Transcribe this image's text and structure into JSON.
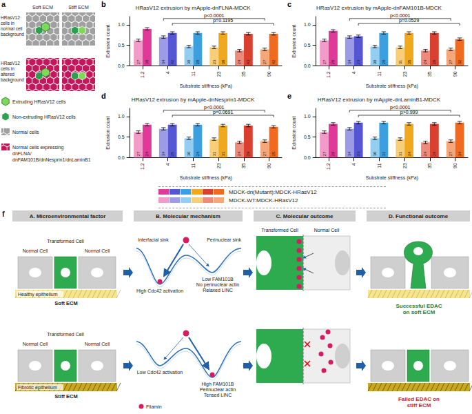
{
  "panel_a": {
    "label": "a",
    "columns": [
      "Soft ECM",
      "Stiff ECM"
    ],
    "rows": [
      "HRasV12 cells in normal cell background",
      "HRasV12 cells in altered background"
    ],
    "key": [
      "Extruding HRasV12 cells",
      "Non-extruding HRasV12 cells",
      "Normal cells",
      "Normal cells expressing dnFLNA/ dnFAM101B/dnNesprin1/dnLaminB1"
    ]
  },
  "chart_data": [
    {
      "panel_label": "b",
      "type": "bar",
      "title": "HRasV12 extrusion by mApple-dnFLNA-MDCK",
      "x_label": "Substrate stiffness (kPa)",
      "y_label": "Extrusion count",
      "categories": [
        "1.2",
        "4",
        "11",
        "23",
        "35",
        "90"
      ],
      "series": [
        {
          "name": "MDCK-WT:MDCK-HRasV12",
          "colors": [
            "#f29ac8",
            "#9b9be6",
            "#93cdf0",
            "#f8cf78",
            "#ee8a7c",
            "#f6a779"
          ],
          "values": [
            0.62,
            0.7,
            0.47,
            0.45,
            0.37,
            0.4
          ],
          "errors": [
            0.03,
            0.03,
            0.03,
            0.03,
            0.03,
            0.03
          ],
          "n": [
            27,
            34,
            30,
            23,
            24,
            27
          ]
        },
        {
          "name": "MDCK-dn(Mutant):MDCK-HRasV12",
          "colors": [
            "#e0399a",
            "#5556d4",
            "#3c9fe0",
            "#f0a81e",
            "#d9402f",
            "#f06a1f"
          ],
          "values": [
            0.9,
            0.8,
            0.8,
            0.8,
            0.78,
            0.78
          ],
          "errors": [
            0.03,
            0.03,
            0.03,
            0.03,
            0.03,
            0.03
          ],
          "n": [
            30,
            42,
            20,
            38,
            43,
            42
          ]
        }
      ],
      "ylim": [
        0,
        1.2
      ],
      "yticks": [
        {
          "value": 0,
          "label": "0.0"
        },
        0.5,
        {
          "value": 1,
          "label": "1.0"
        }
      ],
      "grid": false,
      "annotations": [
        {
          "text": "p<0.0001",
          "categories": [
            "4",
            "90"
          ],
          "series": "MDCK-WT:MDCK-HRasV12"
        },
        {
          "text": "p=0.1195",
          "categories": [
            "4",
            "90"
          ],
          "series": "MDCK-dn(Mutant):MDCK-HRasV12"
        }
      ]
    },
    {
      "panel_label": "c",
      "type": "bar",
      "title": "HRasV12 extrusion by mApple-dnFAM101B-MDCK",
      "x_label": "Substrate stiffness (kPa)",
      "y_label": "Extrusion count",
      "categories": [
        "1.2",
        "4",
        "11",
        "23",
        "35",
        "90"
      ],
      "series": [
        {
          "name": "MDCK-WT:MDCK-HRasV12",
          "colors": [
            "#f29ac8",
            "#9b9be6",
            "#93cdf0",
            "#f8cf78",
            "#ee8a7c",
            "#f6a779"
          ],
          "values": [
            0.62,
            0.7,
            0.47,
            0.45,
            0.37,
            0.4
          ],
          "errors": [
            0.03,
            0.03,
            0.03,
            0.03,
            0.03,
            0.03
          ],
          "n": [
            27,
            34,
            30,
            31,
            24,
            27
          ]
        },
        {
          "name": "MDCK-dn(Mutant):MDCK-HRasV12",
          "colors": [
            "#e0399a",
            "#5556d4",
            "#3c9fe0",
            "#f0a81e",
            "#d9402f",
            "#f06a1f"
          ],
          "values": [
            0.85,
            0.72,
            0.8,
            0.8,
            0.8,
            0.65
          ],
          "errors": [
            0.03,
            0.03,
            0.03,
            0.03,
            0.03,
            0.03
          ],
          "n": [
            28,
            23,
            20,
            35,
            28,
            32
          ]
        }
      ],
      "ylim": [
        0,
        1.2
      ],
      "yticks": [
        {
          "value": 0,
          "label": "0.0"
        },
        0.5,
        {
          "value": 1,
          "label": "1.0"
        }
      ],
      "grid": false,
      "annotations": [
        {
          "text": "p<0.0001",
          "categories": [
            "4",
            "90"
          ],
          "series": "MDCK-WT:MDCK-HRasV12"
        },
        {
          "text": "p=0.0529",
          "categories": [
            "4",
            "90"
          ],
          "series": "MDCK-dn(Mutant):MDCK-HRasV12"
        }
      ]
    },
    {
      "panel_label": "d",
      "type": "bar",
      "title": "HRasV12 extrusion by mApple-dnNesprin1-MDCK",
      "x_label": "Substrate stiffness (kPa)",
      "y_label": "Extrusion count",
      "categories": [
        "1.2",
        "4",
        "11",
        "23",
        "35",
        "90"
      ],
      "series": [
        {
          "name": "MDCK-WT:MDCK-HRasV12",
          "colors": [
            "#f29ac8",
            "#9b9be6",
            "#93cdf0",
            "#f8cf78",
            "#ee8a7c",
            "#f6a779"
          ],
          "values": [
            0.62,
            0.7,
            0.47,
            0.45,
            0.37,
            0.4
          ],
          "errors": [
            0.03,
            0.03,
            0.03,
            0.03,
            0.03,
            0.03
          ],
          "n": [
            27,
            34,
            30,
            31,
            24,
            27
          ]
        },
        {
          "name": "MDCK-dn(Mutant):MDCK-HRasV12",
          "colors": [
            "#e0399a",
            "#5556d4",
            "#3c9fe0",
            "#f0a81e",
            "#d9402f",
            "#f06a1f"
          ],
          "values": [
            0.8,
            0.8,
            0.8,
            0.78,
            0.78,
            0.75
          ],
          "errors": [
            0.03,
            0.03,
            0.03,
            0.03,
            0.03,
            0.03
          ],
          "n": [
            24,
            25,
            24,
            31,
            29,
            25
          ]
        }
      ],
      "ylim": [
        0,
        1.2
      ],
      "yticks": [
        {
          "value": 0,
          "label": "0.0"
        },
        0.5,
        {
          "value": 1,
          "label": "1.0"
        }
      ],
      "grid": false,
      "annotations": [
        {
          "text": "p<0.0001",
          "categories": [
            "4",
            "90"
          ],
          "series": "MDCK-WT:MDCK-HRasV12"
        },
        {
          "text": "p=0.0691",
          "categories": [
            "4",
            "90"
          ],
          "series": "MDCK-dn(Mutant):MDCK-HRasV12"
        }
      ]
    },
    {
      "panel_label": "e",
      "type": "bar",
      "title": "HRasV12 extrusion by mApple-dnLaminB1-MDCK",
      "x_label": "Substrate stiffness (kPa)",
      "y_label": "Extrusion count",
      "categories": [
        "1.2",
        "4",
        "11",
        "23",
        "35",
        "90"
      ],
      "series": [
        {
          "name": "MDCK-WT:MDCK-HRasV12",
          "colors": [
            "#f29ac8",
            "#9b9be6",
            "#93cdf0",
            "#f8cf78",
            "#ee8a7c",
            "#f6a779"
          ],
          "values": [
            0.62,
            0.7,
            0.47,
            0.45,
            0.37,
            0.4
          ],
          "errors": [
            0.03,
            0.03,
            0.03,
            0.03,
            0.03,
            0.03
          ],
          "n": [
            27,
            34,
            30,
            31,
            24,
            27
          ]
        },
        {
          "name": "MDCK-dn(Mutant):MDCK-HRasV12",
          "colors": [
            "#e0399a",
            "#5556d4",
            "#3c9fe0",
            "#f0a81e",
            "#d9402f",
            "#f06a1f"
          ],
          "values": [
            0.82,
            0.85,
            0.85,
            0.82,
            0.82,
            0.85
          ],
          "errors": [
            0.03,
            0.03,
            0.03,
            0.03,
            0.03,
            0.03
          ],
          "n": [
            29,
            23,
            31,
            24,
            24,
            34
          ]
        }
      ],
      "ylim": [
        0,
        1.2
      ],
      "yticks": [
        {
          "value": 0,
          "label": "0.0"
        },
        0.5,
        {
          "value": 1,
          "label": "1.0"
        }
      ],
      "grid": false,
      "annotations": [
        {
          "text": "p<0.0001",
          "categories": [
            "4",
            "90"
          ],
          "series": "MDCK-WT:MDCK-HRasV12"
        },
        {
          "text": "p>0.999",
          "categories": [
            "4",
            "90"
          ],
          "series": "MDCK-dn(Mutant):MDCK-HRasV12"
        }
      ]
    }
  ],
  "panel_f": {
    "label": "f",
    "columns": [
      "A. Microenvironmental factor",
      "B. Molecular mechanism",
      "C. Molecular outcome",
      "D. Functional outcome"
    ],
    "transformed_cell": "Transformed Cell",
    "normal_cell": "Normal Cell",
    "filamin": "Filamin",
    "soft": {
      "epithelium": "Healthy epithelium",
      "ecm": "Soft ECM",
      "sinks": [
        "Interfacial sink",
        "Perinuclear sink"
      ],
      "left_state": [
        "High Cdc42 activation"
      ],
      "right_state": [
        "Low FAM101B",
        "No perinuclear actin",
        "Relaxed LINC"
      ],
      "outcome": "Successful EDAC on soft ECM"
    },
    "stiff": {
      "epithelium": "Fibrotic epithelium",
      "ecm": "Stiff ECM",
      "left_state": [
        "Low Cdc42 activation"
      ],
      "right_state": [
        "High FAM101B",
        "Perinuclear actin",
        "Tensed LINC"
      ],
      "outcome": "Failed EDAC on stiff ECM"
    }
  }
}
